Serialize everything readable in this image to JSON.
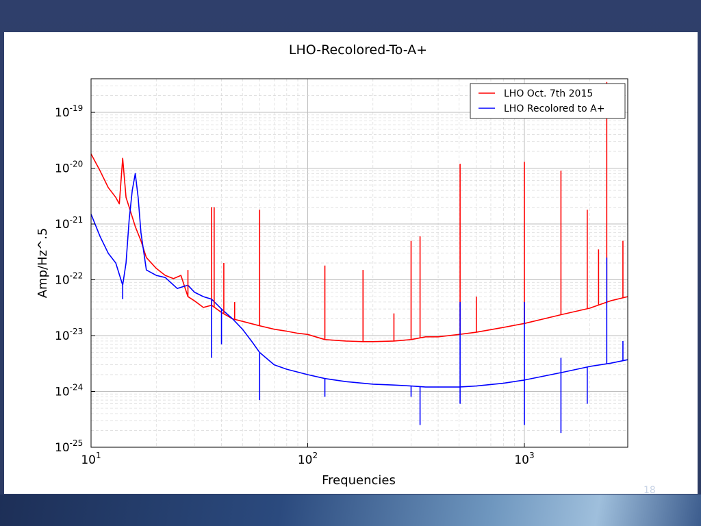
{
  "slide": {
    "page_number": "18",
    "background_color": "#2f3f6b"
  },
  "chart_data": {
    "type": "line",
    "title": "LHO-Recolored-To-A+",
    "xlabel": "Frequencies",
    "ylabel": "Amp/Hz^.5",
    "xscale": "log",
    "yscale": "log",
    "xlim": [
      10,
      3000
    ],
    "ylim": [
      1e-25,
      4e-19
    ],
    "grid": true,
    "legend_position": "top-right",
    "x_ticks": [
      {
        "value": 10,
        "base": "10",
        "exp": "1"
      },
      {
        "value": 100,
        "base": "10",
        "exp": "2"
      },
      {
        "value": 1000,
        "base": "10",
        "exp": "3"
      }
    ],
    "y_ticks": [
      {
        "value": 1e-25,
        "base": "10",
        "exp": "-25"
      },
      {
        "value": 1e-24,
        "base": "10",
        "exp": "-24"
      },
      {
        "value": 1e-23,
        "base": "10",
        "exp": "-23"
      },
      {
        "value": 1e-22,
        "base": "10",
        "exp": "-22"
      },
      {
        "value": 1e-21,
        "base": "10",
        "exp": "-21"
      },
      {
        "value": 1e-20,
        "base": "10",
        "exp": "-20"
      },
      {
        "value": 1e-19,
        "base": "10",
        "exp": "-19"
      }
    ],
    "series": [
      {
        "name": "LHO Oct. 7th 2015",
        "color": "#ff0000",
        "x": [
          10,
          11,
          12,
          13,
          13.5,
          14,
          14.5,
          15,
          16,
          17,
          18,
          20,
          22,
          24,
          26,
          28,
          30,
          33,
          36,
          40,
          45,
          50,
          60,
          70,
          80,
          90,
          100,
          120,
          150,
          180,
          200,
          250,
          300,
          350,
          400,
          500,
          600,
          800,
          1000,
          1500,
          2000,
          2500,
          3000
        ],
        "y": [
          1.8e-20,
          9e-21,
          4.5e-21,
          3e-21,
          2.3e-21,
          1.5e-20,
          3e-21,
          2e-21,
          9e-22,
          5e-22,
          2.5e-22,
          1.6e-22,
          1.2e-22,
          1.05e-22,
          1.2e-22,
          5e-23,
          4.2e-23,
          3.2e-23,
          3.5e-23,
          2.6e-23,
          2e-23,
          1.8e-23,
          1.5e-23,
          1.3e-23,
          1.2e-23,
          1.1e-23,
          1.05e-23,
          8.5e-24,
          8e-24,
          7.8e-24,
          7.8e-24,
          8e-24,
          8.5e-24,
          9.5e-24,
          9.5e-24,
          1.05e-23,
          1.15e-23,
          1.4e-23,
          1.65e-23,
          2.4e-23,
          3.1e-23,
          4.2e-23,
          5e-23
        ]
      },
      {
        "name": "LHO Recolored to A+",
        "color": "#0000ff",
        "x": [
          10,
          11,
          12,
          13,
          14,
          14.5,
          15,
          15.5,
          16,
          16.5,
          17,
          18,
          20,
          22,
          25,
          28,
          30,
          33,
          36,
          40,
          45,
          50,
          55,
          60,
          70,
          80,
          100,
          120,
          150,
          200,
          250,
          300,
          350,
          400,
          500,
          600,
          800,
          1000,
          1500,
          2000,
          2500,
          3000
        ],
        "y": [
          1.5e-21,
          6e-22,
          3e-22,
          2e-22,
          8e-23,
          2e-22,
          1.2e-21,
          4e-21,
          8e-21,
          3e-21,
          7e-22,
          1.5e-22,
          1.2e-22,
          1.1e-22,
          7e-23,
          8e-23,
          6e-23,
          5e-23,
          4.5e-23,
          3e-23,
          2e-23,
          1.3e-23,
          8e-24,
          5e-24,
          3e-24,
          2.5e-24,
          2e-24,
          1.7e-24,
          1.5e-24,
          1.35e-24,
          1.3e-24,
          1.25e-24,
          1.2e-24,
          1.2e-24,
          1.2e-24,
          1.25e-24,
          1.4e-24,
          1.6e-24,
          2.2e-24,
          2.8e-24,
          3.2e-24,
          3.7e-24
        ]
      }
    ],
    "lines_red": [
      {
        "x": 14,
        "y": 1.5e-20
      },
      {
        "x": 28,
        "y": 1.5e-22
      },
      {
        "x": 36,
        "y": 2e-21
      },
      {
        "x": 37,
        "y": 2e-21
      },
      {
        "x": 41,
        "y": 2e-22
      },
      {
        "x": 46,
        "y": 4e-23
      },
      {
        "x": 60,
        "y": 1.8e-21
      },
      {
        "x": 120,
        "y": 1.8e-22
      },
      {
        "x": 180,
        "y": 1.5e-22
      },
      {
        "x": 250,
        "y": 2.5e-23
      },
      {
        "x": 300,
        "y": 5e-22
      },
      {
        "x": 330,
        "y": 6e-22
      },
      {
        "x": 505,
        "y": 1.2e-20
      },
      {
        "x": 600,
        "y": 5e-23
      },
      {
        "x": 1000,
        "y": 1.3e-20
      },
      {
        "x": 1475,
        "y": 9e-21
      },
      {
        "x": 1950,
        "y": 1.8e-21
      },
      {
        "x": 2200,
        "y": 3.5e-22
      },
      {
        "x": 2400,
        "y": 3.5e-19
      },
      {
        "x": 2850,
        "y": 5e-22
      }
    ],
    "lines_blue_up": [
      {
        "x": 505,
        "y": 4e-23
      },
      {
        "x": 1000,
        "y": 4e-23
      },
      {
        "x": 1475,
        "y": 4e-24
      },
      {
        "x": 2400,
        "y": 2.5e-22
      },
      {
        "x": 2850,
        "y": 8e-24
      }
    ],
    "lines_blue_down": [
      {
        "x": 14,
        "y": 4.5e-23
      },
      {
        "x": 36,
        "y": 4e-24
      },
      {
        "x": 40,
        "y": 7e-24
      },
      {
        "x": 60,
        "y": 7e-25
      },
      {
        "x": 120,
        "y": 8e-25
      },
      {
        "x": 300,
        "y": 8e-25
      },
      {
        "x": 330,
        "y": 2.5e-25
      },
      {
        "x": 505,
        "y": 6e-25
      },
      {
        "x": 1000,
        "y": 2.5e-25
      },
      {
        "x": 1475,
        "y": 1.8e-25
      },
      {
        "x": 1950,
        "y": 6e-25
      }
    ]
  }
}
